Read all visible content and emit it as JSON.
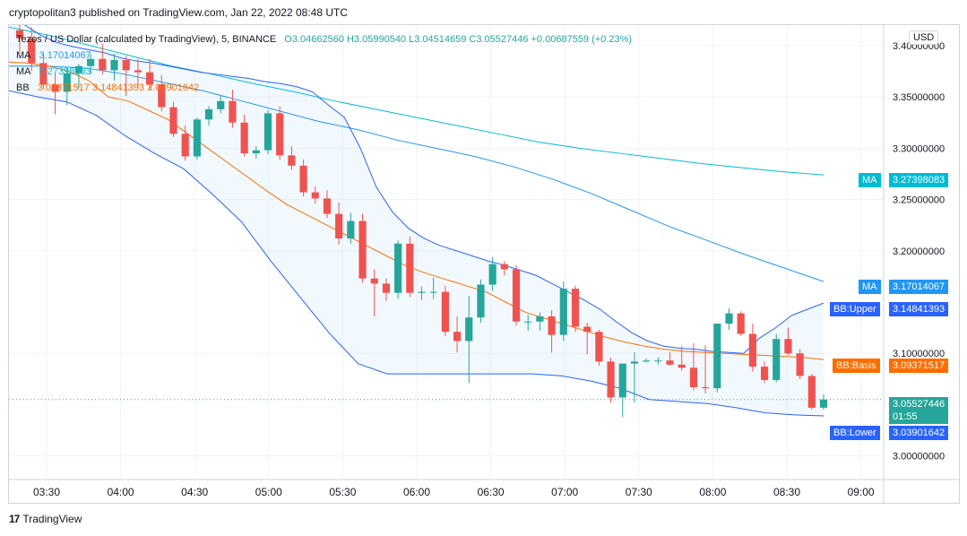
{
  "header": {
    "text": "cryptopolitan3 published on TradingView.com, Jan 22, 2022 08:48 UTC"
  },
  "legend": {
    "symbol": "Tezos / US Dollar (calculated by TradingView), 5, BINANCE",
    "ohlc": "O3.04662560  H3.05990540  L3.04514659  C3.05527446  +0.00687559 (+0.23%)",
    "ma1_label": "MA",
    "ma1_value": "3.17014067",
    "ma2_label": "MA",
    "ma2_value": "3.27398083",
    "bb_label": "BB",
    "bb_values": "3.09371517  3.14841393  3.03901642"
  },
  "currency": "USD",
  "footer": {
    "logo": "17",
    "text": "TradingView"
  },
  "badges": {
    "ma_long_label": "MA",
    "ma_long_value": "3.27398083",
    "ma_short_label": "MA",
    "ma_short_value": "3.17014067",
    "bb_upper_label": "BB:Upper",
    "bb_upper_value": "3.14841393",
    "bb_basis_label": "BB:Basis",
    "bb_basis_value": "3.09371517",
    "price_value": "3.05527446",
    "price_timer": "01:55",
    "bb_lower_label": "BB:Lower",
    "bb_lower_value": "3.03901642"
  },
  "colors": {
    "up": "#26a69a",
    "down": "#ef5350",
    "bb": "#2962ff",
    "basis": "#ff6d00",
    "ma_long": "#00bcd4",
    "ma_short": "#2196f3"
  },
  "chart_data": {
    "type": "candlestick",
    "timeframe": "5",
    "x_ticks": [
      "03:30",
      "04:00",
      "04:30",
      "05:00",
      "05:30",
      "06:00",
      "06:30",
      "07:00",
      "07:30",
      "08:00",
      "08:30",
      "09:00"
    ],
    "y_ticks": [
      "3.40000000",
      "3.35000000",
      "3.30000000",
      "3.25000000",
      "3.20000000",
      "3.10000000",
      "3.00000000"
    ],
    "ylim": [
      2.977,
      3.42
    ],
    "candles": [
      {
        "o": 3.415,
        "h": 3.424,
        "l": 3.392,
        "c": 3.407
      },
      {
        "o": 3.407,
        "h": 3.418,
        "l": 3.375,
        "c": 3.383
      },
      {
        "o": 3.383,
        "h": 3.392,
        "l": 3.358,
        "c": 3.362
      },
      {
        "o": 3.362,
        "h": 3.373,
        "l": 3.333,
        "c": 3.355
      },
      {
        "o": 3.355,
        "h": 3.378,
        "l": 3.342,
        "c": 3.373
      },
      {
        "o": 3.373,
        "h": 3.382,
        "l": 3.358,
        "c": 3.38
      },
      {
        "o": 3.38,
        "h": 3.392,
        "l": 3.372,
        "c": 3.387
      },
      {
        "o": 3.387,
        "h": 3.402,
        "l": 3.372,
        "c": 3.376
      },
      {
        "o": 3.376,
        "h": 3.392,
        "l": 3.366,
        "c": 3.386
      },
      {
        "o": 3.386,
        "h": 3.39,
        "l": 3.351,
        "c": 3.376
      },
      {
        "o": 3.376,
        "h": 3.387,
        "l": 3.358,
        "c": 3.374
      },
      {
        "o": 3.374,
        "h": 3.387,
        "l": 3.357,
        "c": 3.362
      },
      {
        "o": 3.362,
        "h": 3.371,
        "l": 3.336,
        "c": 3.34
      },
      {
        "o": 3.34,
        "h": 3.345,
        "l": 3.311,
        "c": 3.314
      },
      {
        "o": 3.314,
        "h": 3.322,
        "l": 3.288,
        "c": 3.292
      },
      {
        "o": 3.292,
        "h": 3.33,
        "l": 3.289,
        "c": 3.328
      },
      {
        "o": 3.328,
        "h": 3.341,
        "l": 3.322,
        "c": 3.338
      },
      {
        "o": 3.338,
        "h": 3.351,
        "l": 3.334,
        "c": 3.346
      },
      {
        "o": 3.346,
        "h": 3.357,
        "l": 3.32,
        "c": 3.325
      },
      {
        "o": 3.325,
        "h": 3.333,
        "l": 3.292,
        "c": 3.295
      },
      {
        "o": 3.295,
        "h": 3.302,
        "l": 3.29,
        "c": 3.298
      },
      {
        "o": 3.298,
        "h": 3.337,
        "l": 3.294,
        "c": 3.334
      },
      {
        "o": 3.334,
        "h": 3.341,
        "l": 3.289,
        "c": 3.293
      },
      {
        "o": 3.293,
        "h": 3.302,
        "l": 3.279,
        "c": 3.283
      },
      {
        "o": 3.283,
        "h": 3.289,
        "l": 3.253,
        "c": 3.257
      },
      {
        "o": 3.257,
        "h": 3.263,
        "l": 3.246,
        "c": 3.251
      },
      {
        "o": 3.251,
        "h": 3.259,
        "l": 3.232,
        "c": 3.236
      },
      {
        "o": 3.236,
        "h": 3.247,
        "l": 3.206,
        "c": 3.212
      },
      {
        "o": 3.212,
        "h": 3.237,
        "l": 3.207,
        "c": 3.229
      },
      {
        "o": 3.229,
        "h": 3.236,
        "l": 3.169,
        "c": 3.173
      },
      {
        "o": 3.173,
        "h": 3.182,
        "l": 3.136,
        "c": 3.168
      },
      {
        "o": 3.168,
        "h": 3.173,
        "l": 3.151,
        "c": 3.159
      },
      {
        "o": 3.159,
        "h": 3.21,
        "l": 3.153,
        "c": 3.207
      },
      {
        "o": 3.207,
        "h": 3.214,
        "l": 3.155,
        "c": 3.159
      },
      {
        "o": 3.159,
        "h": 3.165,
        "l": 3.152,
        "c": 3.16
      },
      {
        "o": 3.16,
        "h": 3.174,
        "l": 3.153,
        "c": 3.16
      },
      {
        "o": 3.16,
        "h": 3.166,
        "l": 3.117,
        "c": 3.121
      },
      {
        "o": 3.121,
        "h": 3.136,
        "l": 3.101,
        "c": 3.112
      },
      {
        "o": 3.112,
        "h": 3.156,
        "l": 3.071,
        "c": 3.135
      },
      {
        "o": 3.135,
        "h": 3.172,
        "l": 3.13,
        "c": 3.167
      },
      {
        "o": 3.167,
        "h": 3.194,
        "l": 3.161,
        "c": 3.187
      },
      {
        "o": 3.187,
        "h": 3.19,
        "l": 3.176,
        "c": 3.182
      },
      {
        "o": 3.182,
        "h": 3.186,
        "l": 3.127,
        "c": 3.131
      },
      {
        "o": 3.131,
        "h": 3.138,
        "l": 3.122,
        "c": 3.131
      },
      {
        "o": 3.131,
        "h": 3.14,
        "l": 3.122,
        "c": 3.136
      },
      {
        "o": 3.136,
        "h": 3.142,
        "l": 3.101,
        "c": 3.118
      },
      {
        "o": 3.118,
        "h": 3.17,
        "l": 3.112,
        "c": 3.163
      },
      {
        "o": 3.163,
        "h": 3.166,
        "l": 3.121,
        "c": 3.126
      },
      {
        "o": 3.126,
        "h": 3.13,
        "l": 3.099,
        "c": 3.121
      },
      {
        "o": 3.121,
        "h": 3.123,
        "l": 3.088,
        "c": 3.092
      },
      {
        "o": 3.092,
        "h": 3.096,
        "l": 3.052,
        "c": 3.057
      },
      {
        "o": 3.057,
        "h": 3.089,
        "l": 3.038,
        "c": 3.09
      },
      {
        "o": 3.09,
        "h": 3.101,
        "l": 3.052,
        "c": 3.092
      },
      {
        "o": 3.092,
        "h": 3.095,
        "l": 3.091,
        "c": 3.093
      },
      {
        "o": 3.093,
        "h": 3.096,
        "l": 3.089,
        "c": 3.093
      },
      {
        "o": 3.093,
        "h": 3.101,
        "l": 3.088,
        "c": 3.089
      },
      {
        "o": 3.089,
        "h": 3.107,
        "l": 3.083,
        "c": 3.086
      },
      {
        "o": 3.086,
        "h": 3.11,
        "l": 3.064,
        "c": 3.067
      },
      {
        "o": 3.067,
        "h": 3.108,
        "l": 3.061,
        "c": 3.066
      },
      {
        "o": 3.066,
        "h": 3.128,
        "l": 3.062,
        "c": 3.129
      },
      {
        "o": 3.129,
        "h": 3.144,
        "l": 3.123,
        "c": 3.139
      },
      {
        "o": 3.139,
        "h": 3.141,
        "l": 3.117,
        "c": 3.119
      },
      {
        "o": 3.119,
        "h": 3.129,
        "l": 3.082,
        "c": 3.087
      },
      {
        "o": 3.087,
        "h": 3.092,
        "l": 3.071,
        "c": 3.074
      },
      {
        "o": 3.074,
        "h": 3.119,
        "l": 3.072,
        "c": 3.114
      },
      {
        "o": 3.114,
        "h": 3.125,
        "l": 3.098,
        "c": 3.1
      },
      {
        "o": 3.1,
        "h": 3.104,
        "l": 3.075,
        "c": 3.078
      },
      {
        "o": 3.078,
        "h": 3.08,
        "l": 3.045,
        "c": 3.047
      },
      {
        "o": 3.047,
        "h": 3.06,
        "l": 3.045,
        "c": 3.055
      }
    ],
    "series": [
      {
        "name": "BB:Upper",
        "values": [
          3.43,
          3.42,
          3.41,
          3.403,
          3.399,
          3.396,
          3.393,
          3.388,
          3.385,
          3.383,
          3.38,
          3.377,
          3.374,
          3.372,
          3.37,
          3.368,
          3.365,
          3.363,
          3.36,
          3.355,
          3.342,
          3.33,
          3.3,
          3.262,
          3.238,
          3.222,
          3.212,
          3.205,
          3.2,
          3.195,
          3.19,
          3.186,
          3.181,
          3.176,
          3.168,
          3.16,
          3.152,
          3.143,
          3.131,
          3.12,
          3.112,
          3.107,
          3.105,
          3.104,
          3.102,
          3.101,
          3.1,
          3.115,
          3.125,
          3.137,
          3.143,
          3.149
        ]
      },
      {
        "name": "BB:Basis",
        "values": [
          3.384,
          3.383,
          3.38,
          3.375,
          3.366,
          3.35,
          3.346,
          3.337,
          3.328,
          3.314,
          3.3,
          3.286,
          3.272,
          3.258,
          3.245,
          3.235,
          3.225,
          3.215,
          3.205,
          3.195,
          3.185,
          3.178,
          3.172,
          3.166,
          3.16,
          3.15,
          3.14,
          3.134,
          3.128,
          3.122,
          3.116,
          3.111,
          3.107,
          3.104,
          3.102,
          3.101,
          3.1,
          3.099,
          3.098,
          3.097,
          3.096,
          3.094
        ]
      },
      {
        "name": "BB:Lower",
        "values": [
          3.356,
          3.35,
          3.345,
          3.332,
          3.312,
          3.295,
          3.28,
          3.255,
          3.228,
          3.19,
          3.155,
          3.12,
          3.09,
          3.08,
          3.08,
          3.08,
          3.08,
          3.08,
          3.08,
          3.078,
          3.073,
          3.066,
          3.055,
          3.053,
          3.051,
          3.047,
          3.042,
          3.04,
          3.039
        ]
      },
      {
        "name": "MA",
        "values": [
          3.418,
          3.41,
          3.4,
          3.39,
          3.38,
          3.372,
          3.363,
          3.355,
          3.346,
          3.338,
          3.33,
          3.322,
          3.314,
          3.306,
          3.3,
          3.295,
          3.29,
          3.285,
          3.281,
          3.277,
          3.274
        ]
      },
      {
        "name": "MA",
        "values": [
          3.38,
          3.38,
          3.378,
          3.372,
          3.364,
          3.356,
          3.346,
          3.336,
          3.326,
          3.318,
          3.308,
          3.3,
          3.292,
          3.282,
          3.27,
          3.256,
          3.24,
          3.224,
          3.21,
          3.196,
          3.183,
          3.17
        ]
      }
    ]
  }
}
